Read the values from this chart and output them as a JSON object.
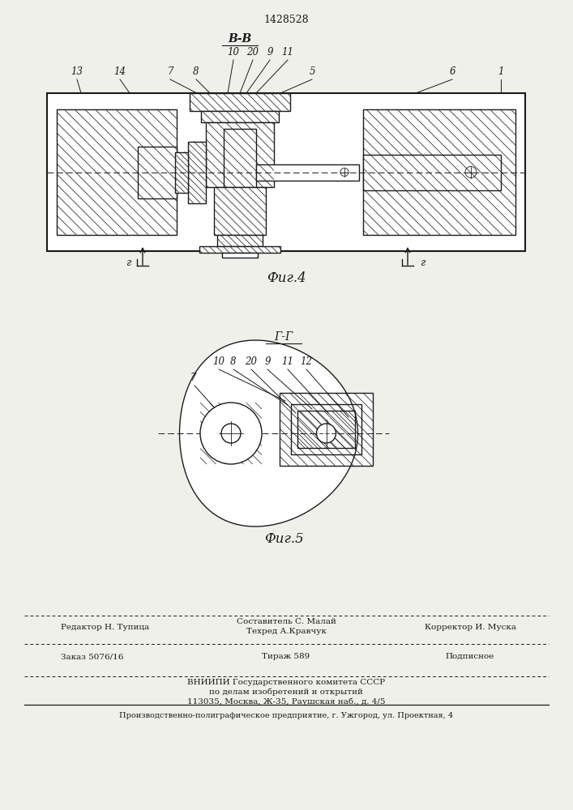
{
  "patent_number": "1428528",
  "fig4_caption": "Фиг.4",
  "fig5_caption": "Фиг.5",
  "section_bb": "В-В",
  "section_gg": "Г-Г",
  "footer_line1": "Составитель С. Малай",
  "footer_line2_left": "Редактор Н. Тупица",
  "footer_line2_mid": "Техред А.Кравчук",
  "footer_line2_right": "Корректор И. Муска",
  "footer_line3_left": "Заказ 5076/16",
  "footer_line3_mid": "Тираж 589",
  "footer_line3_right": "Подписное",
  "footer_line4": "ВНИИПИ Государственного комитета СССР",
  "footer_line5": "по делам изобретений и открытий",
  "footer_line6": "113035, Москва, Ж-35, Раушская наб., д. 4/5",
  "footer_line7": "Производственно-полиграфическое предприятие, г. Ужгород, ул. Проектная, 4",
  "bg_color": "#f0f0eb",
  "line_color": "#1a1a1a"
}
